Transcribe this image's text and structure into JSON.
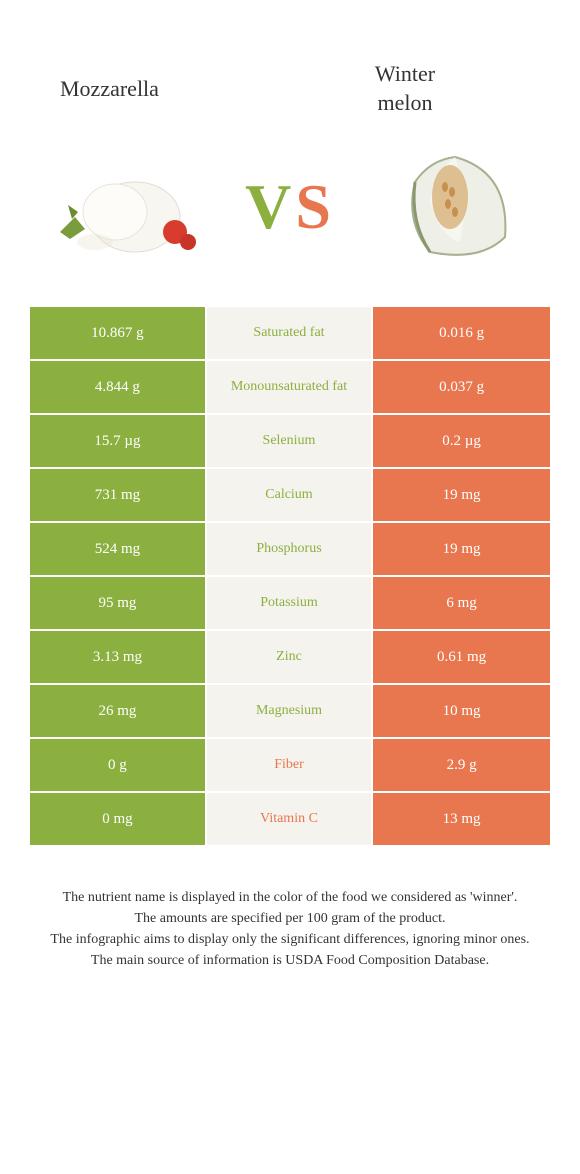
{
  "colors": {
    "left_food": "#8bb040",
    "right_food": "#e8774f",
    "mid_bg": "#f5f3ee",
    "left_text": "#ffffff",
    "right_text": "#ffffff"
  },
  "header": {
    "left_title": "Mozzarella",
    "right_title": "Winter\nmelon",
    "vs_v": "V",
    "vs_s": "S"
  },
  "rows": [
    {
      "left": "10.867 g",
      "label": "Saturated fat",
      "right": "0.016 g",
      "winner": "left"
    },
    {
      "left": "4.844 g",
      "label": "Monounsaturated fat",
      "right": "0.037 g",
      "winner": "left"
    },
    {
      "left": "15.7 µg",
      "label": "Selenium",
      "right": "0.2 µg",
      "winner": "left"
    },
    {
      "left": "731 mg",
      "label": "Calcium",
      "right": "19 mg",
      "winner": "left"
    },
    {
      "left": "524 mg",
      "label": "Phosphorus",
      "right": "19 mg",
      "winner": "left"
    },
    {
      "left": "95 mg",
      "label": "Potassium",
      "right": "6 mg",
      "winner": "left"
    },
    {
      "left": "3.13 mg",
      "label": "Zinc",
      "right": "0.61 mg",
      "winner": "left"
    },
    {
      "left": "26 mg",
      "label": "Magnesium",
      "right": "10 mg",
      "winner": "left"
    },
    {
      "left": "0 g",
      "label": "Fiber",
      "right": "2.9 g",
      "winner": "right"
    },
    {
      "left": "0 mg",
      "label": "Vitamin C",
      "right": "13 mg",
      "winner": "right"
    }
  ],
  "footer": {
    "line1": "The nutrient name is displayed in the color of the food we considered as 'winner'.",
    "line2": "The amounts are specified per 100 gram of the product.",
    "line3": "The infographic aims to display only the significant differences, ignoring minor ones.",
    "line4": "The main source of information is USDA Food Composition Database."
  }
}
